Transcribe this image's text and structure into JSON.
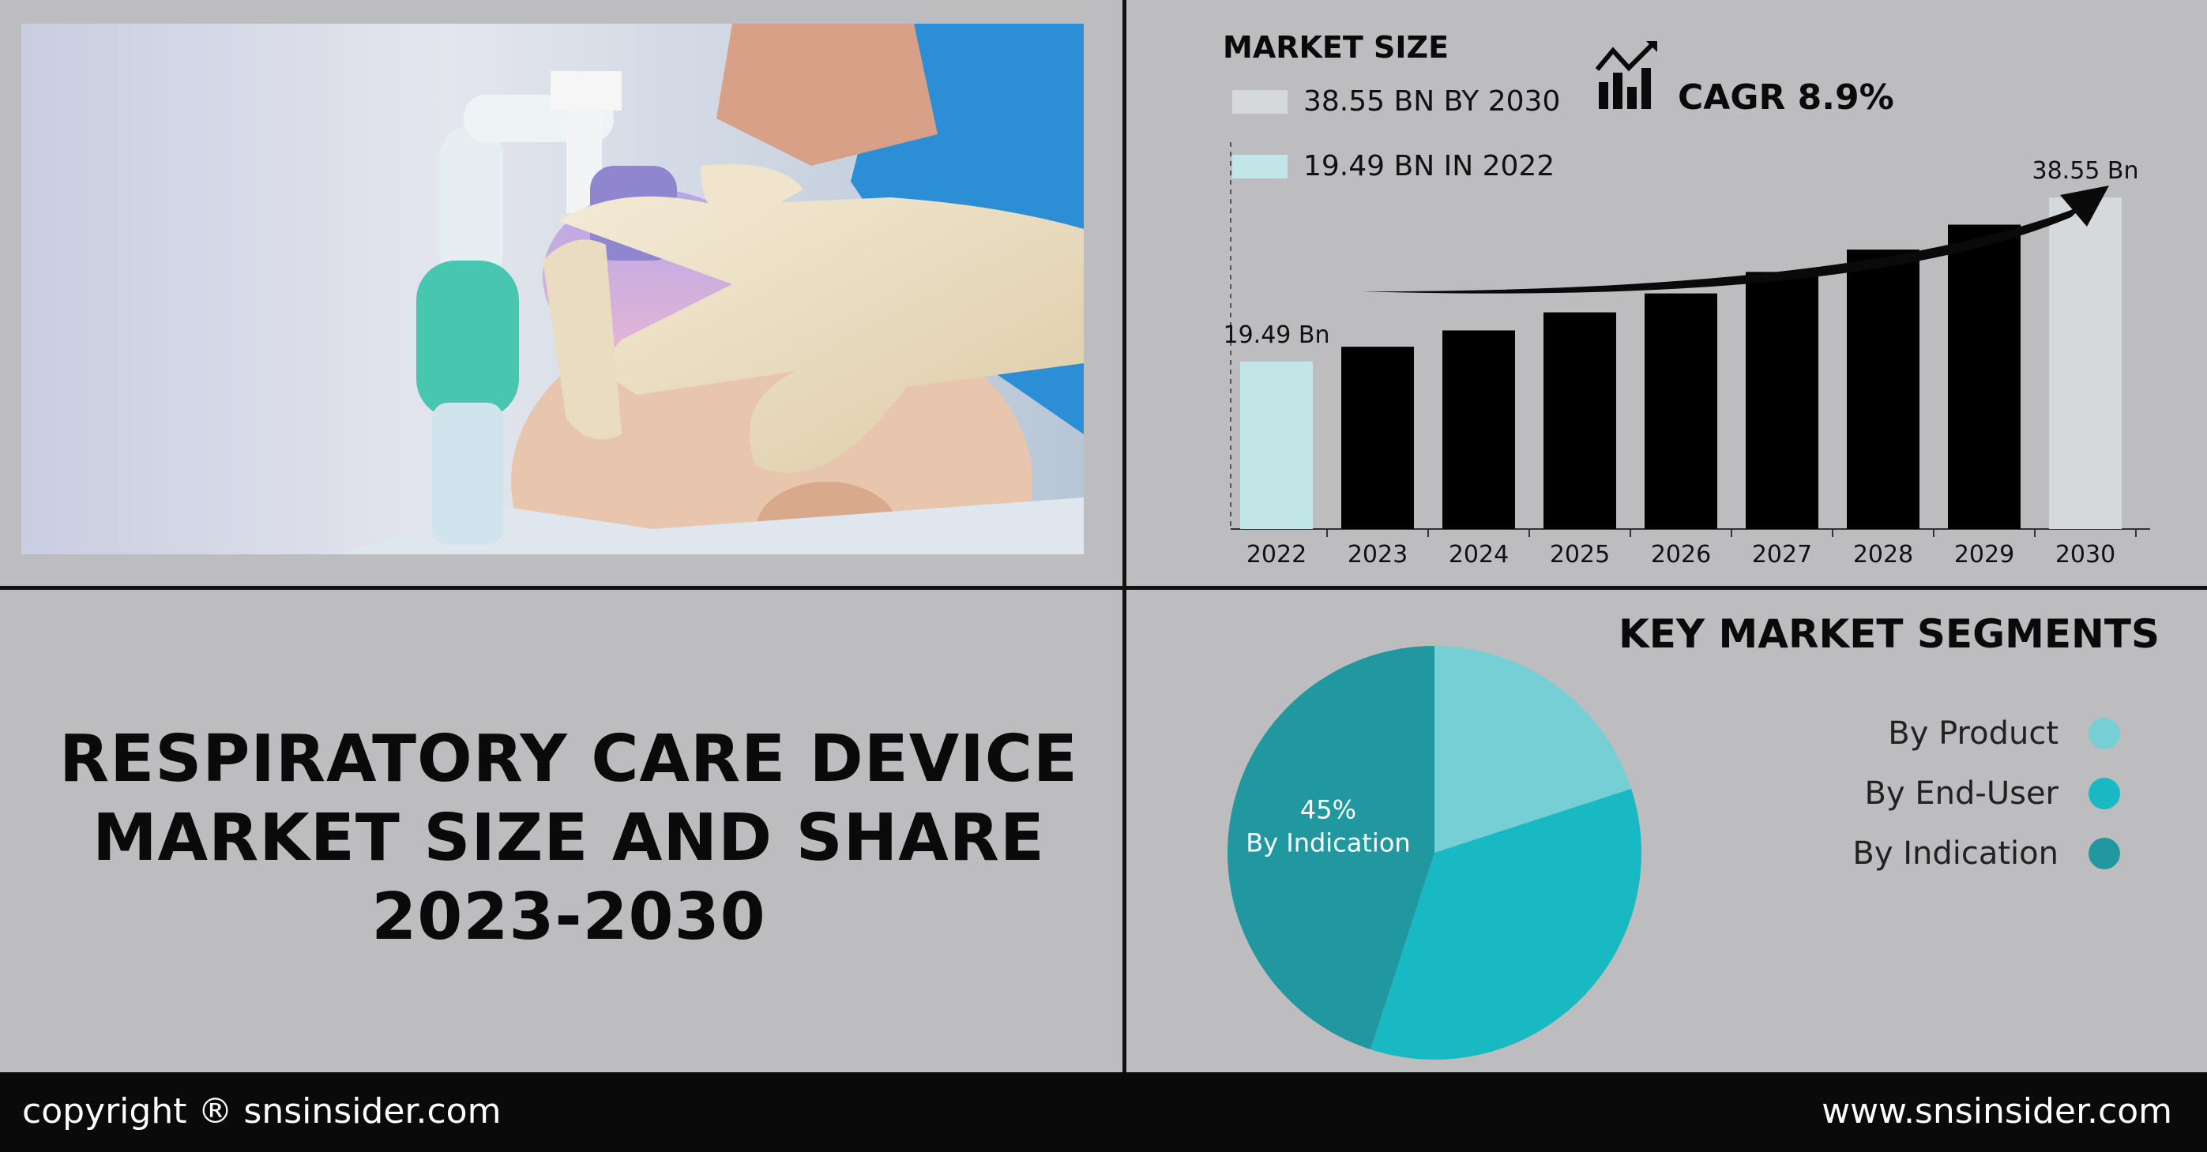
{
  "title": {
    "line1": "RESPIRATORY CARE DEVICE",
    "line2": "MARKET SIZE AND SHARE",
    "line3": "2023-2030"
  },
  "market": {
    "header": "MARKET SIZE",
    "legend": [
      {
        "label": "38.55 BN BY 2030",
        "color": "#d6d9dc"
      },
      {
        "label": "19.49 BN IN 2022",
        "color": "#c2e6e8"
      }
    ],
    "cagr_label": "CAGR 8.9%",
    "icon": "bar-chart-growth-icon"
  },
  "chart_data": [
    {
      "type": "bar",
      "categories": [
        "2022",
        "2023",
        "2024",
        "2025",
        "2026",
        "2027",
        "2028",
        "2029",
        "2030"
      ],
      "values": [
        19.49,
        21.2,
        23.1,
        25.2,
        27.4,
        29.9,
        32.5,
        35.4,
        38.55
      ],
      "colors": [
        "#c2e6e8",
        "#000000",
        "#000000",
        "#000000",
        "#000000",
        "#000000",
        "#000000",
        "#000000",
        "#d6d9dc"
      ],
      "data_labels": {
        "2022": "19.49 Bn",
        "2030": "38.55 Bn"
      },
      "ylim": [
        0,
        45
      ],
      "grid": false,
      "trend_arrow": true
    },
    {
      "type": "pie",
      "title": "KEY MARKET SEGMENTS",
      "categories": [
        "By Product",
        "By End-User",
        "By Indication"
      ],
      "values": [
        20,
        35,
        45
      ],
      "colors": [
        "#76cfd4",
        "#19b9c3",
        "#21979f"
      ],
      "slice_label": {
        "percent": "45%",
        "name": "By Indication"
      }
    }
  ],
  "footer": {
    "left": "copyright ® snsinsider.com",
    "right": "www.snsinsider.com"
  }
}
